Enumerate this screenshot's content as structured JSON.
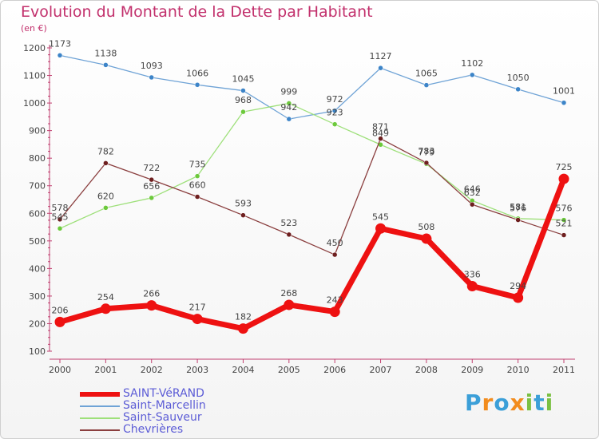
{
  "header": {
    "title": "Evolution du Montant de la Dette par Habitant",
    "subtitle": "(en €)"
  },
  "logo": {
    "text": "Proxiti",
    "colors": [
      "#3b9fd8",
      "#f28c1d",
      "#3b9fd8",
      "#f28c1d",
      "#7bc043",
      "#3b9fd8",
      "#7bc043"
    ]
  },
  "chart_data": {
    "type": "line",
    "title": "Evolution du Montant de la Dette par Habitant",
    "subtitle": "(en €)",
    "x": [
      "2000",
      "2001",
      "2002",
      "2003",
      "2004",
      "2005",
      "2006",
      "2007",
      "2008",
      "2009",
      "2010",
      "2011"
    ],
    "ylim": [
      100,
      1200
    ],
    "yticks": [
      100,
      200,
      300,
      400,
      500,
      600,
      700,
      800,
      900,
      1000,
      1100,
      1200
    ],
    "grid": false,
    "legend_position": "bottom-left",
    "series": [
      {
        "name": "SAINT-VéRAND",
        "color": "#ee1111",
        "emphasis": true,
        "values": [
          206,
          254,
          266,
          217,
          182,
          268,
          243,
          545,
          508,
          336,
          294,
          725
        ]
      },
      {
        "name": "Saint-Marcellin",
        "color": "#6fa3d6",
        "point_color": "#3c84c8",
        "emphasis": false,
        "values": [
          1173,
          1138,
          1093,
          1066,
          1045,
          942,
          972,
          1127,
          1065,
          1102,
          1050,
          1001
        ]
      },
      {
        "name": "Saint-Sauveur",
        "color": "#9ee07a",
        "point_color": "#6cc93b",
        "emphasis": false,
        "values": [
          545,
          620,
          656,
          735,
          968,
          999,
          923,
          849,
          779,
          646,
          581,
          576
        ]
      },
      {
        "name": "Chevrières",
        "color": "#8a3e3e",
        "point_color": "#6e1f1f",
        "emphasis": false,
        "values": [
          578,
          782,
          722,
          660,
          593,
          523,
          450,
          871,
          783,
          632,
          576,
          521
        ]
      }
    ]
  }
}
